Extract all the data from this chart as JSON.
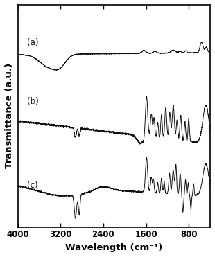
{
  "title": "",
  "xlabel": "Wavelength (cm⁻¹)",
  "ylabel": "Transmittance (a.u.)",
  "xlim": [
    4000,
    400
  ],
  "xticks": [
    4000,
    3200,
    2400,
    1600,
    800
  ],
  "background_color": "#ffffff",
  "line_color": "#111111",
  "label_a": "(a)",
  "label_b": "(b)",
  "label_c": "(c)"
}
